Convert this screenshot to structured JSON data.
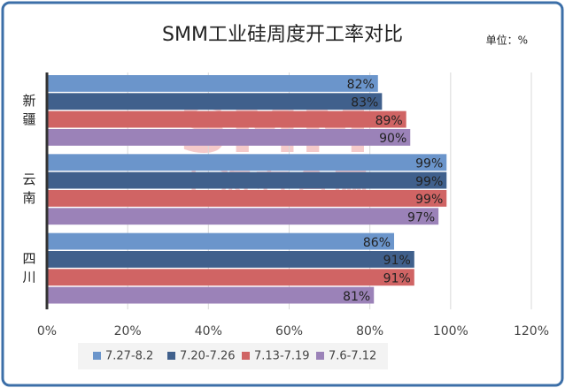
{
  "chart_data": {
    "type": "hbar",
    "title": "SMM工业硅周度开工率对比",
    "unit_note": "单位：%",
    "watermark": [
      "SMM",
      "上海有色网"
    ],
    "categories": [
      "新疆",
      "云南",
      "四川"
    ],
    "series": [
      {
        "name": "7.27-8.2",
        "color": "#6b95cb",
        "values": [
          82,
          99,
          86
        ],
        "value_labels": [
          "82%",
          "99%",
          "86%"
        ]
      },
      {
        "name": "7.20-7.26",
        "color": "#40608c",
        "values": [
          83,
          99,
          91
        ],
        "value_labels": [
          "83%",
          "99%",
          "91%"
        ]
      },
      {
        "name": "7.13-7.19",
        "color": "#d06464",
        "values": [
          89,
          99,
          91
        ],
        "value_labels": [
          "89%",
          "99%",
          "91%"
        ]
      },
      {
        "name": "7.6-7.12",
        "color": "#9b82b8",
        "values": [
          90,
          97,
          81
        ],
        "value_labels": [
          "90%",
          "97%",
          "81%"
        ]
      }
    ],
    "xlim": [
      0,
      120
    ],
    "xticks": [
      {
        "value": 0,
        "label": "0%"
      },
      {
        "value": 20,
        "label": "20%"
      },
      {
        "value": 40,
        "label": "40%"
      },
      {
        "value": 60,
        "label": "60%"
      },
      {
        "value": 80,
        "label": "80%"
      },
      {
        "value": 100,
        "label": "100%"
      },
      {
        "value": 120,
        "label": "120%"
      }
    ],
    "grid": true,
    "legend": "bottom"
  }
}
